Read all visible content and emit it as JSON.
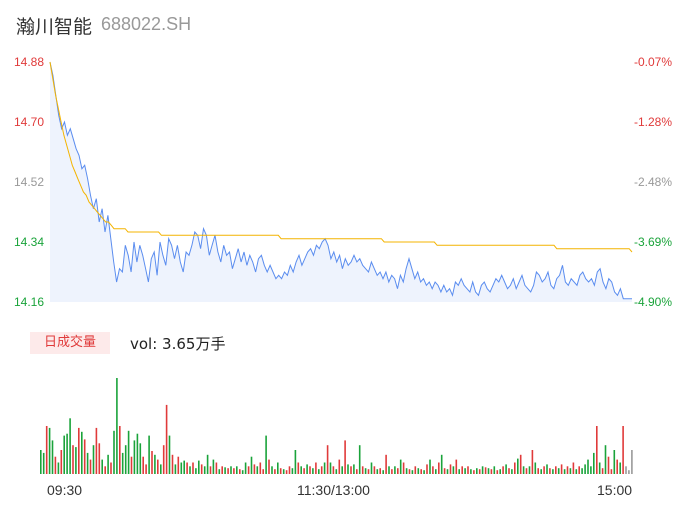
{
  "header": {
    "name": "瀚川智能",
    "code": "688022.SH"
  },
  "volume_panel": {
    "badge_label": "日成交量",
    "vol_text": "vol: 3.65万手"
  },
  "colors": {
    "up": "#e03a3a",
    "down": "#1aa33a",
    "neutral": "#999999",
    "price_line": "#5b8def",
    "avg_line": "#f4b400",
    "price_fill": "#eef3fd"
  },
  "chart_data": [
    {
      "type": "line",
      "title": "",
      "y_left_ticks": [
        "14.88",
        "14.70",
        "14.52",
        "14.34",
        "14.16"
      ],
      "y_right_ticks": [
        "-0.07%",
        "-1.28%",
        "-2.48%",
        "-3.69%",
        "-4.90%"
      ],
      "ylim": [
        14.16,
        14.88
      ],
      "x_ticks": [
        "09:30",
        "11:30/13:00",
        "15:00"
      ],
      "series": [
        {
          "values": [
            14.88,
            14.84,
            14.78,
            14.72,
            14.68,
            14.7,
            14.66,
            14.68,
            14.65,
            14.62,
            14.6,
            14.56,
            14.57,
            14.53,
            14.48,
            14.44,
            14.47,
            14.4,
            14.44,
            14.37,
            14.42,
            14.35,
            14.28,
            14.22,
            14.26,
            14.25,
            14.33,
            14.3,
            14.25,
            14.34,
            14.28,
            14.33,
            14.3,
            14.26,
            14.22,
            14.29,
            14.31,
            14.24,
            14.34,
            14.3,
            14.27,
            14.35,
            14.33,
            14.29,
            14.33,
            14.28,
            14.25,
            14.31,
            14.3,
            14.33,
            14.37,
            14.36,
            14.32,
            14.38,
            14.36,
            14.3,
            14.33,
            14.36,
            14.31,
            14.28,
            14.33,
            14.3,
            14.31,
            14.26,
            14.29,
            14.32,
            14.28,
            14.31,
            14.27,
            14.3,
            14.28,
            14.25,
            14.29,
            14.3,
            14.27,
            14.25,
            14.27,
            14.25,
            14.23,
            14.24,
            14.23,
            14.25,
            14.24,
            14.27,
            14.25,
            14.28,
            14.3,
            14.27,
            14.29,
            14.31,
            14.32,
            14.3,
            14.33,
            14.32,
            14.34,
            14.35,
            14.33,
            14.29,
            14.31,
            14.28,
            14.3,
            14.26,
            14.29,
            14.27,
            14.28,
            14.3,
            14.28,
            14.29,
            14.27,
            14.26,
            14.25,
            14.28,
            14.26,
            14.24,
            14.25,
            14.23,
            14.25,
            14.22,
            14.24,
            14.23,
            14.2,
            14.24,
            14.22,
            14.26,
            14.29,
            14.26,
            14.23,
            14.25,
            14.22,
            14.23,
            14.21,
            14.22,
            14.2,
            14.22,
            14.21,
            14.19,
            14.21,
            14.19,
            14.2,
            14.18,
            14.22,
            14.21,
            14.23,
            14.21,
            14.2,
            14.19,
            14.22,
            14.19,
            14.18,
            14.21,
            14.22,
            14.2,
            14.19,
            14.21,
            14.23,
            14.22,
            14.24,
            14.22,
            14.2,
            14.21,
            14.23,
            14.2,
            14.22,
            14.24,
            14.21,
            14.2,
            14.19,
            14.21,
            14.25,
            14.24,
            14.22,
            14.23,
            14.25,
            14.21,
            14.2,
            14.23,
            14.24,
            14.27,
            14.22,
            14.21,
            14.23,
            14.22,
            14.21,
            14.24,
            14.25,
            14.23,
            14.22,
            14.23,
            14.21,
            14.25,
            14.26,
            14.22,
            14.2,
            14.23,
            14.22,
            14.19,
            14.18,
            14.2,
            14.17,
            14.17,
            14.17,
            14.17
          ]
        },
        {
          "values": [
            14.88,
            14.83,
            14.78,
            14.74,
            14.7,
            14.66,
            14.63,
            14.6,
            14.57,
            14.55,
            14.53,
            14.51,
            14.49,
            14.48,
            14.46,
            14.45,
            14.44,
            14.43,
            14.42,
            14.41,
            14.4,
            14.4,
            14.39,
            14.38,
            14.38,
            14.38,
            14.38,
            14.38,
            14.37,
            14.37,
            14.37,
            14.37,
            14.37,
            14.37,
            14.37,
            14.37,
            14.37,
            14.37,
            14.37,
            14.37,
            14.36,
            14.36,
            14.36,
            14.36,
            14.36,
            14.36,
            14.36,
            14.36,
            14.36,
            14.36,
            14.36,
            14.36,
            14.36,
            14.36,
            14.36,
            14.36,
            14.36,
            14.36,
            14.36,
            14.36,
            14.36,
            14.36,
            14.36,
            14.36,
            14.36,
            14.36,
            14.36,
            14.36,
            14.36,
            14.36,
            14.36,
            14.36,
            14.36,
            14.36,
            14.36,
            14.36,
            14.36,
            14.36,
            14.36,
            14.36,
            14.36,
            14.36,
            14.36,
            14.35,
            14.35,
            14.35,
            14.35,
            14.35,
            14.35,
            14.35,
            14.35,
            14.35,
            14.35,
            14.35,
            14.35,
            14.35,
            14.35,
            14.35,
            14.35,
            14.35,
            14.35,
            14.35,
            14.35,
            14.35,
            14.35,
            14.35,
            14.35,
            14.35,
            14.35,
            14.35,
            14.35,
            14.35,
            14.35,
            14.35,
            14.35,
            14.35,
            14.35,
            14.35,
            14.35,
            14.35,
            14.34,
            14.34,
            14.34,
            14.34,
            14.34,
            14.34,
            14.34,
            14.34,
            14.34,
            14.34,
            14.34,
            14.34,
            14.34,
            14.34,
            14.34,
            14.34,
            14.34,
            14.34,
            14.34,
            14.33,
            14.33,
            14.33,
            14.33,
            14.33,
            14.33,
            14.33,
            14.33,
            14.33,
            14.33,
            14.33,
            14.33,
            14.33,
            14.33,
            14.33,
            14.33,
            14.33,
            14.33,
            14.33,
            14.33,
            14.33,
            14.33,
            14.33,
            14.33,
            14.33,
            14.33,
            14.33,
            14.33,
            14.33,
            14.33,
            14.33,
            14.33,
            14.33,
            14.33,
            14.33,
            14.33,
            14.33,
            14.33,
            14.33,
            14.33,
            14.33,
            14.33,
            14.33,
            14.32,
            14.32,
            14.32,
            14.32,
            14.32,
            14.32,
            14.32,
            14.32,
            14.32,
            14.32,
            14.32,
            14.32,
            14.32,
            14.32,
            14.32,
            14.32,
            14.32,
            14.32,
            14.32,
            14.32,
            14.32,
            14.32,
            14.32,
            14.32,
            14.32,
            14.32,
            14.32,
            14.31
          ]
        }
      ]
    },
    {
      "type": "bar",
      "title": "",
      "values": [
        0.25,
        0.22,
        0.5,
        0.48,
        0.35,
        0.18,
        0.12,
        0.25,
        0.4,
        0.42,
        0.58,
        0.3,
        0.28,
        0.48,
        0.44,
        0.36,
        0.22,
        0.15,
        0.3,
        0.48,
        0.32,
        0.15,
        0.08,
        0.2,
        0.12,
        0.45,
        1.0,
        0.5,
        0.22,
        0.3,
        0.45,
        0.18,
        0.35,
        0.42,
        0.32,
        0.18,
        0.1,
        0.4,
        0.24,
        0.2,
        0.15,
        0.1,
        0.3,
        0.72,
        0.4,
        0.2,
        0.1,
        0.18,
        0.12,
        0.14,
        0.12,
        0.08,
        0.12,
        0.06,
        0.14,
        0.1,
        0.08,
        0.2,
        0.08,
        0.15,
        0.12,
        0.05,
        0.08,
        0.07,
        0.06,
        0.08,
        0.06,
        0.08,
        0.05,
        0.04,
        0.12,
        0.08,
        0.18,
        0.1,
        0.08,
        0.12,
        0.05,
        0.4,
        0.15,
        0.08,
        0.05,
        0.12,
        0.06,
        0.05,
        0.04,
        0.08,
        0.06,
        0.25,
        0.12,
        0.08,
        0.06,
        0.1,
        0.08,
        0.06,
        0.12,
        0.05,
        0.08,
        0.12,
        0.3,
        0.12,
        0.08,
        0.05,
        0.15,
        0.08,
        0.35,
        0.1,
        0.08,
        0.1,
        0.05,
        0.3,
        0.08,
        0.06,
        0.05,
        0.12,
        0.08,
        0.05,
        0.06,
        0.04,
        0.2,
        0.08,
        0.05,
        0.08,
        0.06,
        0.15,
        0.12,
        0.06,
        0.05,
        0.04,
        0.08,
        0.06,
        0.05,
        0.04,
        0.1,
        0.15,
        0.08,
        0.05,
        0.12,
        0.2,
        0.06,
        0.05,
        0.1,
        0.08,
        0.15,
        0.05,
        0.08,
        0.06,
        0.08,
        0.05,
        0.04,
        0.06,
        0.05,
        0.08,
        0.07,
        0.06,
        0.05,
        0.08,
        0.04,
        0.05,
        0.08,
        0.1,
        0.06,
        0.05,
        0.12,
        0.16,
        0.2,
        0.08,
        0.06,
        0.08,
        0.25,
        0.12,
        0.06,
        0.05,
        0.08,
        0.1,
        0.06,
        0.05,
        0.08,
        0.06,
        0.1,
        0.05,
        0.08,
        0.06,
        0.12,
        0.05,
        0.08,
        0.06,
        0.1,
        0.15,
        0.08,
        0.22,
        0.5,
        0.12,
        0.06,
        0.3,
        0.18,
        0.05,
        0.25,
        0.15,
        0.12,
        0.5,
        0.08,
        0.04,
        0.25
      ],
      "colors": [
        "down",
        "down",
        "up",
        "down",
        "down",
        "up",
        "down",
        "up",
        "down",
        "down",
        "down",
        "up",
        "down",
        "up",
        "down",
        "up",
        "down",
        "up",
        "down",
        "up",
        "up",
        "down",
        "up",
        "down",
        "up",
        "down",
        "down",
        "up",
        "down",
        "down",
        "down",
        "up",
        "down",
        "down",
        "down",
        "up",
        "up",
        "down",
        "up",
        "down",
        "up",
        "down",
        "up",
        "up",
        "down",
        "up",
        "down",
        "up",
        "down",
        "down",
        "up",
        "down",
        "up",
        "down",
        "down",
        "up",
        "down",
        "down",
        "up",
        "down",
        "up",
        "down",
        "up",
        "down",
        "up",
        "down",
        "up",
        "down",
        "up",
        "down",
        "down",
        "up",
        "down",
        "up",
        "down",
        "up",
        "up",
        "down",
        "up",
        "down",
        "up",
        "down",
        "up",
        "down",
        "up",
        "up",
        "down",
        "down",
        "up",
        "down",
        "up",
        "down",
        "up",
        "down",
        "up",
        "down",
        "up",
        "down",
        "up",
        "down",
        "up",
        "down",
        "up",
        "down",
        "up",
        "down",
        "up",
        "down",
        "up",
        "down",
        "up",
        "down",
        "up",
        "down",
        "up",
        "down",
        "up",
        "down",
        "up",
        "down",
        "up",
        "down",
        "up",
        "down",
        "up",
        "down",
        "up",
        "down",
        "up",
        "down",
        "up",
        "down",
        "up",
        "down",
        "up",
        "down",
        "up",
        "down",
        "up",
        "down",
        "up",
        "down",
        "up",
        "down",
        "up",
        "down",
        "up",
        "down",
        "up",
        "down",
        "up",
        "down",
        "up",
        "down",
        "up",
        "down",
        "up",
        "down",
        "up",
        "down",
        "up",
        "down",
        "up",
        "down",
        "up",
        "down",
        "up",
        "down",
        "up",
        "down",
        "up",
        "down",
        "up",
        "down",
        "up",
        "down",
        "up",
        "down",
        "up",
        "down",
        "up",
        "down",
        "up",
        "down",
        "up",
        "down",
        "down",
        "down",
        "down",
        "down",
        "up",
        "down",
        "up",
        "down",
        "up",
        "up",
        "down",
        "up",
        "down",
        "up",
        "neutral"
      ]
    }
  ]
}
